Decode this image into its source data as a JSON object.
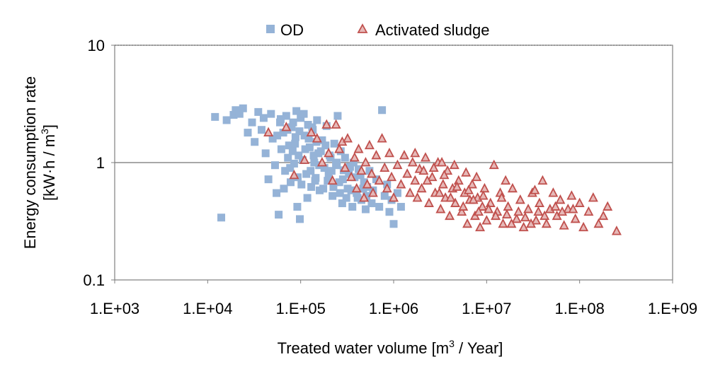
{
  "chart_data": {
    "type": "scatter",
    "x_scale": "log",
    "y_scale": "log",
    "xlim": [
      1000,
      1000000000
    ],
    "ylim": [
      0.1,
      10
    ],
    "x_tick_labels": [
      "1.E+03",
      "1.E+04",
      "1.E+05",
      "1.E+06",
      "1.E+07",
      "1.E+08",
      "1.E+09"
    ],
    "x_tick_values": [
      1000,
      10000,
      100000,
      1000000,
      10000000,
      100000000,
      1000000000
    ],
    "y_tick_labels": [
      "0.1",
      "1",
      "10"
    ],
    "y_tick_values": [
      0.1,
      1,
      10
    ],
    "xlabel_main": "Treated water volume [m",
    "xlabel_sup": "3",
    "xlabel_end": " / Year]",
    "ylabel_line1": "Energy consumption rate",
    "ylabel_line2_main": "[kW·h / m",
    "ylabel_line2_sup": "3",
    "ylabel_line2_end": "]",
    "legend_position": "top-center",
    "series": [
      {
        "name": "OD",
        "marker": "square",
        "color": "#95b3d7",
        "points": [
          [
            12000,
            2.45
          ],
          [
            14000,
            0.34
          ],
          [
            16000,
            2.3
          ],
          [
            19000,
            2.55
          ],
          [
            20000,
            2.8
          ],
          [
            22000,
            2.6
          ],
          [
            24000,
            2.9
          ],
          [
            27000,
            1.8
          ],
          [
            30000,
            2.2
          ],
          [
            32000,
            1.5
          ],
          [
            35000,
            2.7
          ],
          [
            38000,
            1.9
          ],
          [
            40000,
            2.4
          ],
          [
            42000,
            1.2
          ],
          [
            45000,
            0.72
          ],
          [
            48000,
            2.6
          ],
          [
            50000,
            1.6
          ],
          [
            53000,
            0.95
          ],
          [
            55000,
            0.55
          ],
          [
            58000,
            0.36
          ],
          [
            60000,
            2.2
          ],
          [
            62000,
            1.3
          ],
          [
            65000,
            1.8
          ],
          [
            68000,
            0.85
          ],
          [
            70000,
            2.5
          ],
          [
            73000,
            1.1
          ],
          [
            75000,
            1.4
          ],
          [
            78000,
            0.68
          ],
          [
            80000,
            2.0
          ],
          [
            82000,
            1.25
          ],
          [
            85000,
            0.98
          ],
          [
            88000,
            1.65
          ],
          [
            90000,
            2.75
          ],
          [
            92000,
            0.42
          ],
          [
            95000,
            1.15
          ],
          [
            98000,
            0.33
          ],
          [
            100000,
            2.4
          ],
          [
            105000,
            1.05
          ],
          [
            110000,
            1.7
          ],
          [
            115000,
            0.8
          ],
          [
            120000,
            2.1
          ],
          [
            125000,
            1.35
          ],
          [
            130000,
            0.62
          ],
          [
            135000,
            1.9
          ],
          [
            140000,
            1.0
          ],
          [
            145000,
            0.74
          ],
          [
            150000,
            2.3
          ],
          [
            155000,
            1.2
          ],
          [
            160000,
            0.58
          ],
          [
            170000,
            1.55
          ],
          [
            180000,
            0.9
          ],
          [
            190000,
            2.05
          ],
          [
            200000,
            0.78
          ],
          [
            210000,
            1.1
          ],
          [
            220000,
            0.52
          ],
          [
            230000,
            1.45
          ],
          [
            240000,
            0.95
          ],
          [
            250000,
            2.5
          ],
          [
            260000,
            0.68
          ],
          [
            270000,
            1.25
          ],
          [
            280000,
            0.45
          ],
          [
            290000,
            0.86
          ],
          [
            300000,
            1.1
          ],
          [
            320000,
            0.6
          ],
          [
            340000,
            0.92
          ],
          [
            360000,
            0.42
          ],
          [
            380000,
            0.75
          ],
          [
            400000,
            0.55
          ],
          [
            420000,
            0.88
          ],
          [
            450000,
            0.48
          ],
          [
            480000,
            0.68
          ],
          [
            500000,
            0.4
          ],
          [
            520000,
            0.62
          ],
          [
            550000,
            0.85
          ],
          [
            580000,
            0.45
          ],
          [
            600000,
            0.58
          ],
          [
            650000,
            0.72
          ],
          [
            700000,
            0.42
          ],
          [
            750000,
            2.8
          ],
          [
            800000,
            0.52
          ],
          [
            850000,
            0.65
          ],
          [
            900000,
            0.38
          ],
          [
            950000,
            0.48
          ],
          [
            1000000,
            0.3
          ],
          [
            1100000,
            0.55
          ],
          [
            1200000,
            0.42
          ],
          [
            56000,
            1.7
          ],
          [
            61000,
            2.35
          ],
          [
            66000,
            0.6
          ],
          [
            72000,
            1.9
          ],
          [
            77000,
            0.9
          ],
          [
            83000,
            2.2
          ],
          [
            87000,
            1.45
          ],
          [
            93000,
            0.75
          ],
          [
            97000,
            1.85
          ],
          [
            102000,
            0.65
          ],
          [
            108000,
            2.6
          ],
          [
            112000,
            1.3
          ],
          [
            118000,
            0.5
          ],
          [
            122000,
            1.6
          ],
          [
            128000,
            0.85
          ],
          [
            133000,
            2.0
          ],
          [
            138000,
            1.15
          ],
          [
            143000,
            0.7
          ],
          [
            148000,
            1.5
          ],
          [
            158000,
            0.95
          ],
          [
            165000,
            1.25
          ],
          [
            175000,
            0.6
          ],
          [
            185000,
            1.4
          ],
          [
            195000,
            0.7
          ],
          [
            205000,
            1.15
          ],
          [
            215000,
            0.85
          ],
          [
            225000,
            0.62
          ],
          [
            245000,
            1.0
          ],
          [
            265000,
            0.55
          ],
          [
            285000,
            0.72
          ],
          [
            310000,
            0.5
          ],
          [
            330000,
            0.8
          ],
          [
            350000,
            0.58
          ],
          [
            370000,
            1.0
          ],
          [
            410000,
            0.5
          ],
          [
            440000,
            0.78
          ],
          [
            470000,
            0.6
          ],
          [
            510000,
            0.52
          ]
        ]
      },
      {
        "name": "Activated sludge",
        "marker": "triangle",
        "color": "#c0504d",
        "points": [
          [
            45000,
            1.8
          ],
          [
            70000,
            2.0
          ],
          [
            85000,
            0.78
          ],
          [
            110000,
            1.05
          ],
          [
            130000,
            1.8
          ],
          [
            150000,
            1.6
          ],
          [
            170000,
            1.0
          ],
          [
            190000,
            2.1
          ],
          [
            200000,
            1.2
          ],
          [
            220000,
            0.7
          ],
          [
            240000,
            2.1
          ],
          [
            260000,
            1.3
          ],
          [
            280000,
            1.5
          ],
          [
            300000,
            0.9
          ],
          [
            320000,
            1.6
          ],
          [
            350000,
            0.75
          ],
          [
            380000,
            1.1
          ],
          [
            400000,
            0.6
          ],
          [
            420000,
            1.3
          ],
          [
            450000,
            0.85
          ],
          [
            480000,
            0.5
          ],
          [
            500000,
            1.0
          ],
          [
            520000,
            0.65
          ],
          [
            550000,
            1.4
          ],
          [
            580000,
            0.8
          ],
          [
            600000,
            0.55
          ],
          [
            650000,
            1.15
          ],
          [
            700000,
            0.7
          ],
          [
            750000,
            1.6
          ],
          [
            800000,
            0.9
          ],
          [
            850000,
            0.6
          ],
          [
            900000,
            1.2
          ],
          [
            950000,
            0.75
          ],
          [
            1000000,
            0.5
          ],
          [
            1100000,
            0.95
          ],
          [
            1200000,
            0.65
          ],
          [
            1300000,
            1.15
          ],
          [
            1400000,
            0.8
          ],
          [
            1500000,
            0.55
          ],
          [
            1600000,
            1.0
          ],
          [
            1700000,
            0.7
          ],
          [
            1800000,
            0.5
          ],
          [
            1900000,
            0.88
          ],
          [
            2000000,
            0.6
          ],
          [
            2200000,
            1.1
          ],
          [
            2400000,
            0.45
          ],
          [
            2600000,
            0.75
          ],
          [
            2800000,
            0.55
          ],
          [
            3000000,
            1.0
          ],
          [
            3200000,
            0.4
          ],
          [
            3400000,
            0.65
          ],
          [
            3600000,
            0.5
          ],
          [
            3800000,
            0.85
          ],
          [
            4000000,
            0.35
          ],
          [
            4300000,
            0.6
          ],
          [
            4600000,
            0.45
          ],
          [
            5000000,
            0.7
          ],
          [
            5400000,
            0.38
          ],
          [
            5800000,
            0.55
          ],
          [
            6200000,
            0.3
          ],
          [
            6600000,
            0.48
          ],
          [
            7000000,
            0.65
          ],
          [
            7500000,
            0.35
          ],
          [
            8000000,
            0.5
          ],
          [
            8500000,
            0.28
          ],
          [
            9000000,
            0.42
          ],
          [
            9500000,
            0.6
          ],
          [
            10000000,
            0.32
          ],
          [
            11000000,
            0.45
          ],
          [
            12000000,
            0.95
          ],
          [
            13000000,
            0.38
          ],
          [
            14000000,
            0.55
          ],
          [
            15000000,
            0.3
          ],
          [
            17000000,
            0.42
          ],
          [
            19000000,
            0.6
          ],
          [
            21000000,
            0.33
          ],
          [
            23000000,
            0.48
          ],
          [
            25000000,
            0.28
          ],
          [
            28000000,
            0.4
          ],
          [
            31000000,
            0.55
          ],
          [
            34000000,
            0.32
          ],
          [
            37000000,
            0.45
          ],
          [
            40000000,
            0.7
          ],
          [
            44000000,
            0.3
          ],
          [
            48000000,
            0.4
          ],
          [
            52000000,
            0.55
          ],
          [
            57000000,
            0.35
          ],
          [
            62000000,
            0.48
          ],
          [
            68000000,
            0.29
          ],
          [
            75000000,
            0.4
          ],
          [
            82000000,
            0.52
          ],
          [
            90000000,
            0.33
          ],
          [
            100000000,
            0.45
          ],
          [
            110000000,
            0.28
          ],
          [
            125000000,
            0.38
          ],
          [
            140000000,
            0.5
          ],
          [
            160000000,
            0.3
          ],
          [
            180000000,
            0.35
          ],
          [
            200000000,
            0.42
          ],
          [
            250000000,
            0.26
          ],
          [
            2300000,
            0.7
          ],
          [
            2700000,
            0.9
          ],
          [
            3100000,
            0.55
          ],
          [
            3500000,
            0.78
          ],
          [
            4100000,
            0.5
          ],
          [
            4800000,
            0.62
          ],
          [
            5600000,
            0.42
          ],
          [
            6400000,
            0.58
          ],
          [
            7200000,
            0.48
          ],
          [
            8200000,
            0.38
          ],
          [
            9200000,
            0.52
          ],
          [
            10500000,
            0.4
          ],
          [
            12500000,
            0.35
          ],
          [
            14500000,
            0.5
          ],
          [
            16500000,
            0.36
          ],
          [
            18500000,
            0.3
          ],
          [
            22000000,
            0.38
          ],
          [
            26000000,
            0.34
          ],
          [
            30000000,
            0.3
          ],
          [
            36000000,
            0.38
          ],
          [
            42000000,
            0.35
          ],
          [
            55000000,
            0.42
          ],
          [
            65000000,
            0.38
          ],
          [
            85000000,
            0.4
          ],
          [
            1700000,
            1.2
          ],
          [
            2100000,
            0.85
          ],
          [
            3300000,
            1.0
          ],
          [
            4500000,
            0.95
          ],
          [
            6000000,
            0.82
          ],
          [
            7800000,
            0.75
          ],
          [
            16000000,
            0.7
          ],
          [
            33000000,
            0.58
          ]
        ]
      }
    ]
  }
}
